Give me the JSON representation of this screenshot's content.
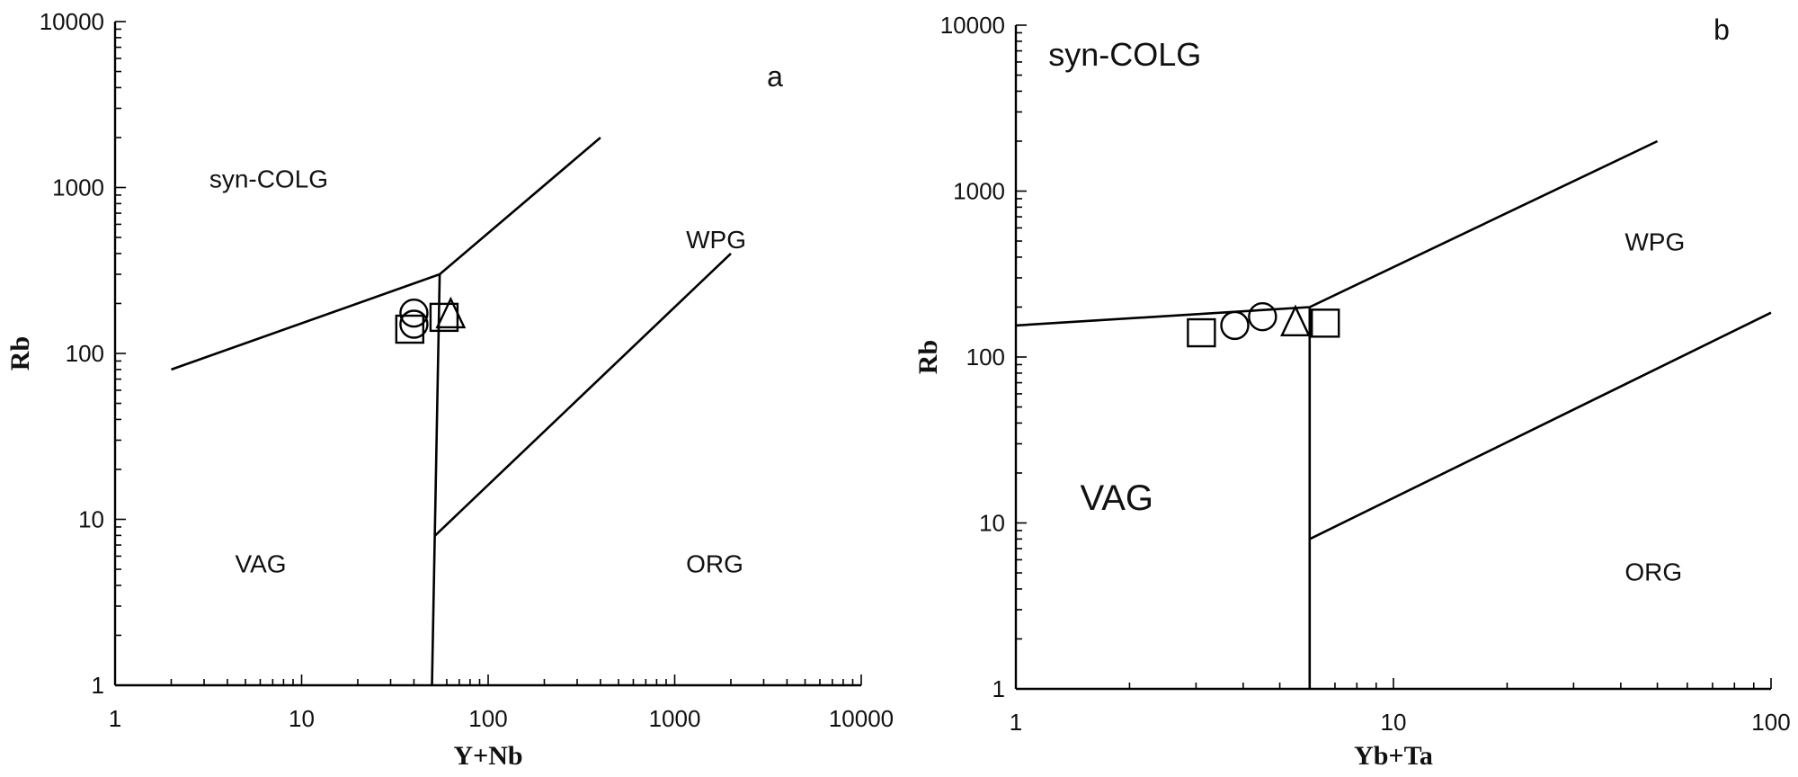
{
  "chart_data": [
    {
      "type": "scatter",
      "panel": "a",
      "xlabel": "Y+Nb",
      "ylabel": "Rb",
      "xscale": "log",
      "yscale": "log",
      "xlim": [
        1,
        10000
      ],
      "ylim": [
        1,
        10000
      ],
      "x_ticks": [
        "1",
        "10",
        "100",
        "1000",
        "10000"
      ],
      "y_ticks": [
        "1",
        "10",
        "100",
        "1000",
        "10000"
      ],
      "grid": false,
      "region_labels": [
        {
          "text": "syn-COLG",
          "x": 3.2,
          "y": 1000
        },
        {
          "text": "WPG",
          "x": 1150,
          "y": 430
        },
        {
          "text": "VAG",
          "x": 4.4,
          "y": 4.8
        },
        {
          "text": "ORG",
          "x": 1150,
          "y": 4.8
        }
      ],
      "boundaries": [
        {
          "points": [
            [
              2,
              80
            ],
            [
              55,
              300
            ],
            [
              400,
              2000
            ]
          ]
        },
        {
          "points": [
            [
              55,
              300
            ],
            [
              50,
              1
            ]
          ]
        },
        {
          "points": [
            [
              52,
              8
            ],
            [
              2000,
              400
            ]
          ]
        }
      ],
      "series": [
        {
          "marker": "square",
          "points": [
            [
              38,
              140
            ],
            [
              58,
              165
            ]
          ]
        },
        {
          "marker": "circle",
          "points": [
            [
              40,
              175
            ],
            [
              40,
              150
            ]
          ]
        },
        {
          "marker": "triangle",
          "points": [
            [
              63,
              170
            ]
          ]
        }
      ]
    },
    {
      "type": "scatter",
      "panel": "b",
      "xlabel": "Yb+Ta",
      "ylabel": "Rb",
      "xscale": "log",
      "yscale": "log",
      "xlim": [
        1,
        100
      ],
      "ylim": [
        1,
        10000
      ],
      "x_ticks": [
        "1",
        "10",
        "100"
      ],
      "y_ticks": [
        "1",
        "10",
        "100",
        "1000",
        "10000"
      ],
      "grid": false,
      "region_labels": [
        {
          "text": "syn-COLG",
          "x": 1.22,
          "y": 5700
        },
        {
          "text": "WPG",
          "x": 41,
          "y": 440
        },
        {
          "text": "VAG",
          "x": 1.48,
          "y": 12
        },
        {
          "text": "ORG",
          "x": 41,
          "y": 4.5
        }
      ],
      "boundaries": [
        {
          "points": [
            [
              1,
              155
            ],
            [
              6,
              200
            ],
            [
              50,
              2000
            ]
          ]
        },
        {
          "points": [
            [
              6,
              200
            ],
            [
              6,
              1
            ]
          ]
        },
        {
          "points": [
            [
              6,
              8
            ],
            [
              100,
              185
            ]
          ]
        }
      ],
      "series": [
        {
          "marker": "square",
          "points": [
            [
              3.1,
              140
            ],
            [
              6.6,
              160
            ]
          ]
        },
        {
          "marker": "circle",
          "points": [
            [
              3.8,
              155
            ],
            [
              4.5,
              175
            ]
          ]
        },
        {
          "marker": "triangle",
          "points": [
            [
              5.5,
              160
            ]
          ]
        }
      ]
    }
  ]
}
